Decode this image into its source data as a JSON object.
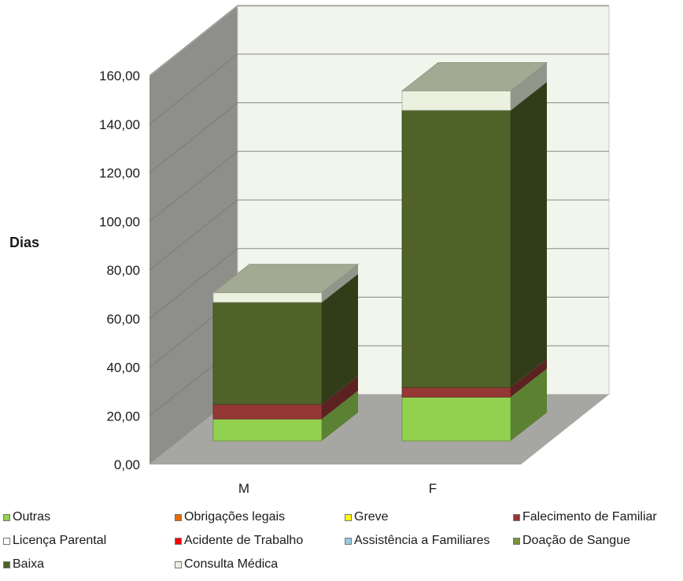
{
  "chart_data": {
    "type": "bar",
    "stacked": true,
    "three_d": true,
    "ylabel": "Dias",
    "ylim": [
      0,
      160
    ],
    "ytick_labels": [
      "0,00",
      "20,00",
      "40,00",
      "60,00",
      "80,00",
      "100,00",
      "120,00",
      "140,00",
      "160,00"
    ],
    "categories": [
      "M",
      "F"
    ],
    "grid": true,
    "legend_position": "bottom",
    "series": [
      {
        "name": "Outras",
        "color": "#92d050",
        "values": [
          9,
          18
        ]
      },
      {
        "name": "Obrigações legais",
        "color": "#e36c09",
        "values": [
          0,
          0
        ]
      },
      {
        "name": "Greve",
        "color": "#ffff00",
        "values": [
          0,
          0
        ]
      },
      {
        "name": "Falecimento de Familiar",
        "color": "#953735",
        "values": [
          6,
          4
        ]
      },
      {
        "name": "Licença Parental",
        "color": "#ffffff",
        "values": [
          0,
          0
        ]
      },
      {
        "name": "Acidente de Trabalho",
        "color": "#ff0000",
        "values": [
          0,
          0
        ]
      },
      {
        "name": "Assistência a Familiares",
        "color": "#93cddd",
        "values": [
          0,
          0
        ]
      },
      {
        "name": "Doação de Sangue",
        "color": "#77933c",
        "values": [
          0,
          0
        ]
      },
      {
        "name": "Baixa",
        "color": "#4f6228",
        "values": [
          42,
          114
        ]
      },
      {
        "name": "Consulta Médica",
        "color": "#ebf1de",
        "values": [
          4,
          8
        ]
      }
    ]
  }
}
